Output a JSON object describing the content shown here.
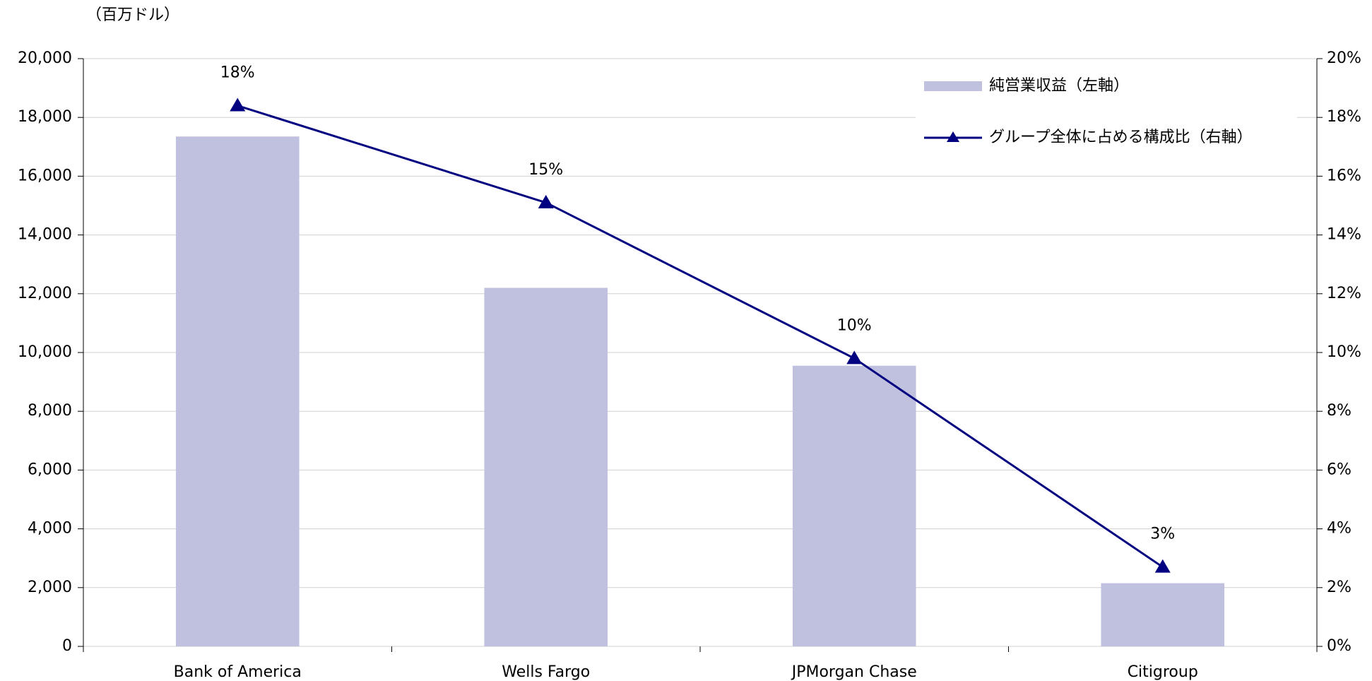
{
  "chart_data": {
    "type": "bar",
    "y_axis_unit": "（百万ドル）",
    "categories": [
      "Bank of America",
      "Wells Fargo",
      "JPMorgan Chase",
      "Citigroup"
    ],
    "series": [
      {
        "name": "純営業収益（左軸）",
        "type": "bar",
        "color": "#c0c1de",
        "values": [
          17350,
          12200,
          9550,
          2150
        ]
      },
      {
        "name": "グループ全体に占める構成比（右軸）",
        "type": "line",
        "axis": "y2",
        "color": "#000080",
        "values": [
          18.4,
          15.1,
          9.8,
          2.7
        ],
        "value_labels": [
          "18%",
          "15%",
          "10%",
          "3%"
        ]
      }
    ],
    "ylim": [
      0,
      20000
    ],
    "yticks": [
      0,
      {
        "value": 2000,
        "label": "2,000"
      },
      {
        "value": 4000,
        "label": "4,000"
      },
      {
        "value": 6000,
        "label": "6,000"
      },
      {
        "value": 8000,
        "label": "8,000"
      },
      {
        "value": 10000,
        "label": "10,000"
      },
      {
        "value": 12000,
        "label": "12,000"
      },
      {
        "value": 14000,
        "label": "14,000"
      },
      {
        "value": 16000,
        "label": "16,000"
      },
      {
        "value": 18000,
        "label": "18,000"
      },
      {
        "value": 20000,
        "label": "20,000"
      }
    ],
    "y2lim": [
      0,
      20
    ],
    "y2ticks": [
      {
        "value": 0,
        "label": "0%"
      },
      {
        "value": 2,
        "label": "2%"
      },
      {
        "value": 4,
        "label": "4%"
      },
      {
        "value": 6,
        "label": "6%"
      },
      {
        "value": 8,
        "label": "8%"
      },
      {
        "value": 10,
        "label": "10%"
      },
      {
        "value": 12,
        "label": "12%"
      },
      {
        "value": 14,
        "label": "14%"
      },
      {
        "value": 16,
        "label": "16%"
      },
      {
        "value": 18,
        "label": "18%"
      },
      {
        "value": 20,
        "label": "20%"
      }
    ],
    "grid": true,
    "legend": "upper right"
  }
}
